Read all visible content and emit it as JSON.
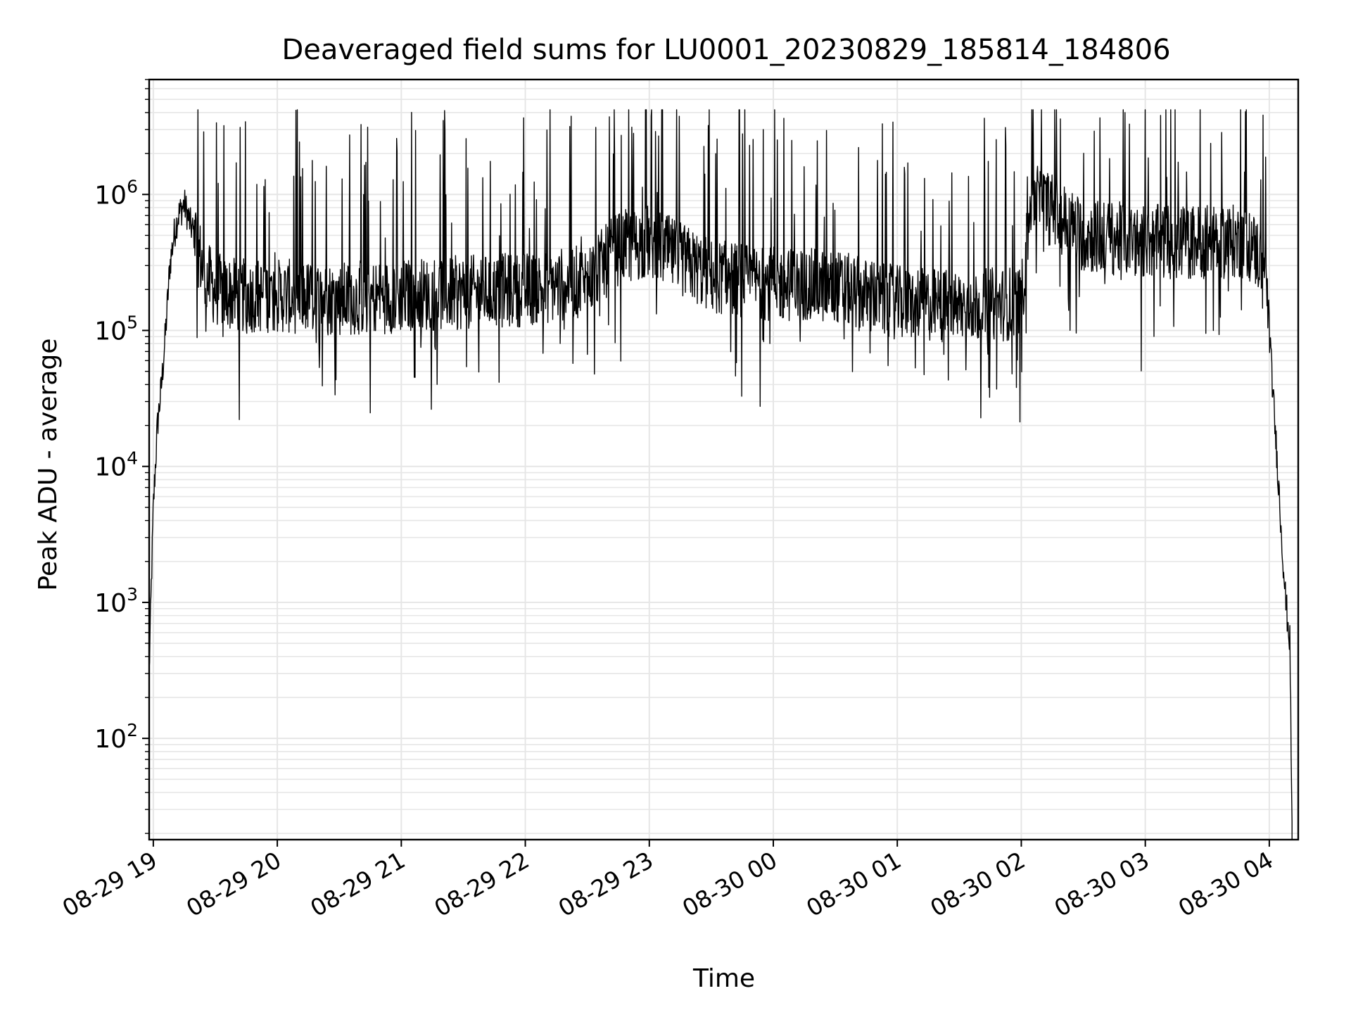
{
  "chart_data": {
    "type": "line",
    "title": "Deaveraged field sums for LU0001_20230829_185814_184806",
    "xlabel": "Time",
    "ylabel": "Peak ADU - average",
    "x_tick_labels": [
      "08-29 19",
      "08-29 20",
      "08-29 21",
      "08-29 22",
      "08-29 23",
      "08-30 00",
      "08-30 01",
      "08-30 02",
      "08-30 03",
      "08-30 04"
    ],
    "y_tick_labels": [
      {
        "base": "10",
        "exp": "2",
        "value": 100
      },
      {
        "base": "10",
        "exp": "3",
        "value": 1000
      },
      {
        "base": "10",
        "exp": "4",
        "value": 10000
      },
      {
        "base": "10",
        "exp": "5",
        "value": 100000
      },
      {
        "base": "10",
        "exp": "6",
        "value": 1000000
      }
    ],
    "yscale": "log",
    "ylim": [
      18,
      7000000
    ],
    "xlim": [
      "2023-08-29 18:58",
      "2023-08-30 04:14"
    ],
    "grid": true,
    "line_color": "#000000",
    "grid_color": "#e6e6e6",
    "series": [
      {
        "x": [
          "2023-08-29 18:58",
          "2023-08-29 19:00",
          "2023-08-29 19:02",
          "2023-08-29 19:04",
          "2023-08-29 19:06",
          "2023-08-29 19:08",
          "2023-08-29 19:10",
          "2023-08-29 19:12",
          "2023-08-29 19:15",
          "2023-08-29 19:18",
          "2023-08-29 19:20",
          "2023-08-29 19:25",
          "2023-08-29 19:30",
          "2023-08-29 19:40",
          "2023-08-29 20:00",
          "2023-08-29 20:30",
          "2023-08-29 21:00",
          "2023-08-29 21:30",
          "2023-08-29 22:00",
          "2023-08-29 22:30",
          "2023-08-29 22:45",
          "2023-08-29 23:00",
          "2023-08-29 23:30",
          "2023-08-30 00:00",
          "2023-08-30 00:30",
          "2023-08-30 00:45",
          "2023-08-30 01:00",
          "2023-08-30 01:30",
          "2023-08-30 02:00",
          "2023-08-30 02:05",
          "2023-08-30 02:30",
          "2023-08-30 03:00",
          "2023-08-30 03:30",
          "2023-08-30 03:50",
          "2023-08-30 03:58",
          "2023-08-30 04:00",
          "2023-08-30 04:02",
          "2023-08-30 04:04",
          "2023-08-30 04:06",
          "2023-08-30 04:08",
          "2023-08-30 04:10",
          "2023-08-30 04:11"
        ],
        "y": [
          300,
          5000,
          20000,
          40000,
          100000,
          300000,
          500000,
          700000,
          850000,
          600000,
          500000,
          250000,
          200000,
          180000,
          180000,
          170000,
          180000,
          190000,
          200000,
          230000,
          400000,
          450000,
          250000,
          220000,
          210000,
          180000,
          160000,
          150000,
          160000,
          1000000,
          500000,
          450000,
          450000,
          450000,
          300000,
          100000,
          30000,
          10000,
          3000,
          1000,
          500,
          20
        ]
      }
    ]
  }
}
